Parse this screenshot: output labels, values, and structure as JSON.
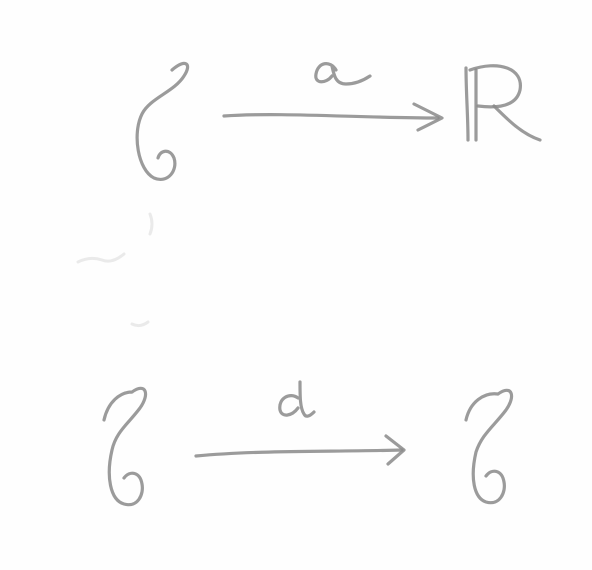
{
  "diagram": {
    "rows": [
      {
        "source": "𝒞",
        "arrow_label": "a",
        "target": "ℝ"
      },
      {
        "source": "𝒞",
        "arrow_label": "d",
        "target": "𝒞"
      }
    ],
    "ink_color": "#8a8a8a"
  }
}
